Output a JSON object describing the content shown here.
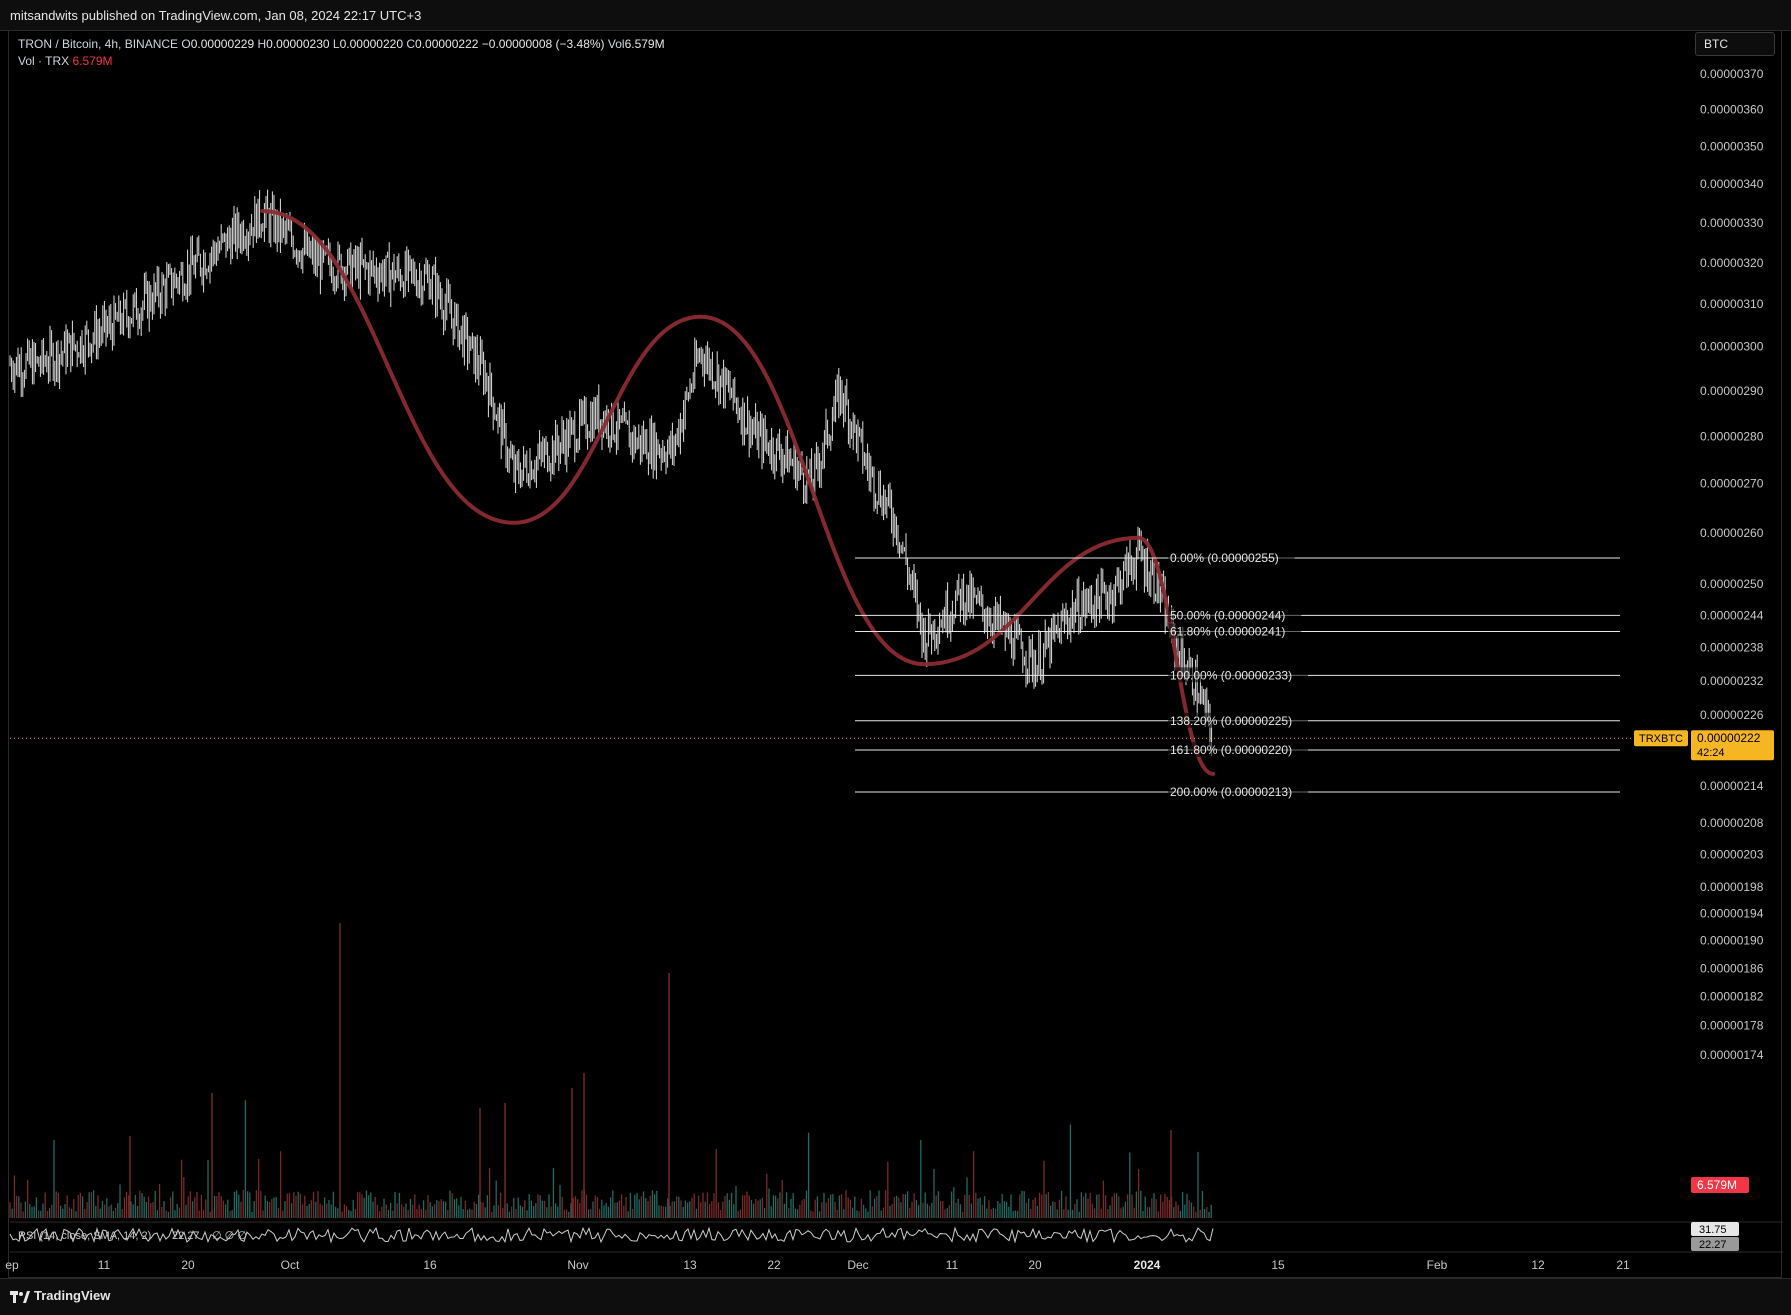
{
  "header": {
    "publisher": "mitsandwits published on TradingView.com, Jan 08, 2024 22:17 UTC+3"
  },
  "legend": {
    "symbol": "TRON / Bitcoin, 4h, BINANCE",
    "o_label": "O",
    "o": "0.00000229",
    "h_label": "H",
    "h": "0.00000230",
    "l_label": "L",
    "l": "0.00000220",
    "c_label": "C",
    "c": "0.00000222",
    "change": "−0.00000008 (−3.48%)",
    "vol_label": "Vol",
    "vol": "6.579M",
    "vol_series_label": "Vol · TRX",
    "vol_series_value": "6.579M"
  },
  "currency": "BTC",
  "footer": {
    "brand": "TradingView"
  },
  "colors": {
    "background": "#000000",
    "candle": "#e0e0e0",
    "pattern_line": "#8b2a33",
    "fib_line": "#e6e6e6",
    "price_tag": "#f5b621",
    "volume_up": "#1e6b63",
    "volume_down": "#7a2a2a",
    "volume_tag": "#f23645",
    "rsi_line": "#cfcfcf"
  },
  "chart_data": {
    "type": "candlestick",
    "title": "TRON / Bitcoin, 4h, BINANCE",
    "price_axis": {
      "scale": "log",
      "ticks": [
        "0.00000370",
        "0.00000360",
        "0.00000350",
        "0.00000340",
        "0.00000330",
        "0.00000320",
        "0.00000310",
        "0.00000300",
        "0.00000290",
        "0.00000280",
        "0.00000270",
        "0.00000260",
        "0.00000250",
        "0.00000244",
        "0.00000238",
        "0.00000232",
        "0.00000226",
        "0.00000220",
        "0.00000214",
        "0.00000208",
        "0.00000203",
        "0.00000198",
        "0.00000194",
        "0.00000190",
        "0.00000186",
        "0.00000182",
        "0.00000178",
        "0.00000174"
      ]
    },
    "time_axis": {
      "ticks": [
        "ep",
        "11",
        "20",
        "Oct",
        "16",
        "Nov",
        "13",
        "22",
        "Dec",
        "11",
        "20",
        "2024",
        "15",
        "Feb",
        "12",
        "21"
      ]
    },
    "price_path": {
      "dates": [
        "2023-09-04",
        "2023-09-12",
        "2023-09-20",
        "2023-09-28",
        "2023-10-04",
        "2023-10-10",
        "2023-10-16",
        "2023-10-22",
        "2023-10-25",
        "2023-10-29",
        "2023-11-03",
        "2023-11-07",
        "2023-11-11",
        "2023-11-14",
        "2023-11-17",
        "2023-11-20",
        "2023-11-23",
        "2023-11-26",
        "2023-11-29",
        "2023-12-02",
        "2023-12-05",
        "2023-12-08",
        "2023-12-12",
        "2023-12-15",
        "2023-12-20",
        "2023-12-24",
        "2023-12-28",
        "2023-12-31",
        "2024-01-02",
        "2024-01-04",
        "2024-01-06",
        "2024-01-08"
      ],
      "close": [
        2.96e-06,
        3.05e-06,
        3.18e-06,
        3.32e-06,
        3.2e-06,
        3.18e-06,
        3.16e-06,
        2.93e-06,
        2.72e-06,
        2.77e-06,
        2.85e-06,
        2.79e-06,
        2.77e-06,
        2.99e-06,
        2.9e-06,
        2.8e-06,
        2.76e-06,
        2.7e-06,
        2.9e-06,
        2.73e-06,
        2.62e-06,
        2.4e-06,
        2.48e-06,
        2.44e-06,
        2.35e-06,
        2.45e-06,
        2.48e-06,
        2.56e-06,
        2.5e-06,
        2.38e-06,
        2.32e-06,
        2.22e-06
      ]
    },
    "pattern_path": {
      "dates": [
        "2023-09-28",
        "2023-10-25",
        "2023-11-14",
        "2023-12-08",
        "2023-12-31",
        "2024-01-08"
      ],
      "prices": [
        3.33e-06,
        2.62e-06,
        3.07e-06,
        2.35e-06,
        2.59e-06,
        2.16e-06
      ]
    },
    "fib_levels": [
      {
        "label": "0.00% (0.00000255)",
        "price": 2.55e-06
      },
      {
        "label": "50.00% (0.00000244)",
        "price": 2.44e-06
      },
      {
        "label": "61.80% (0.00000241)",
        "price": 2.41e-06
      },
      {
        "label": "100.00% (0.00000233)",
        "price": 2.33e-06
      },
      {
        "label": "138.20% (0.00000225)",
        "price": 2.25e-06
      },
      {
        "label": "161.80% (0.00000220)",
        "price": 2.2e-06
      },
      {
        "label": "200.00% (0.00000213)",
        "price": 2.13e-06
      }
    ],
    "last_price": {
      "symbol": "TRXBTC",
      "value": "0.00000222",
      "countdown": "42:24"
    },
    "volume": {
      "last": "6.579M"
    },
    "rsi": {
      "label": "RSI (14, close, SMA, 14, 2)",
      "value1": "22.27",
      "tag_upper": "31.75",
      "tag_lower": "22.27",
      "extra": "∅ ∅ ∅"
    }
  }
}
